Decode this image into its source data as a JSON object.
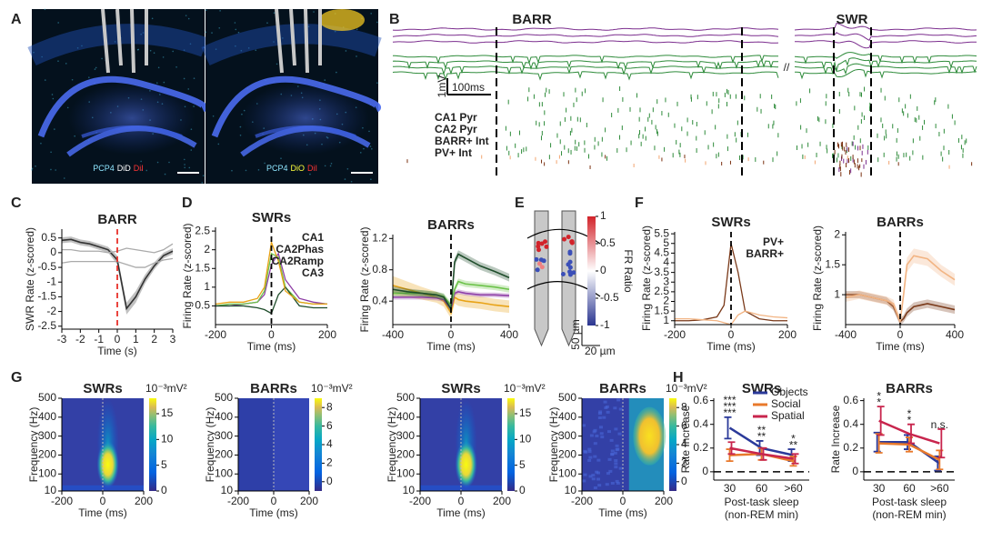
{
  "figure": {
    "panels": [
      "A",
      "B",
      "C",
      "D",
      "E",
      "F",
      "G",
      "H"
    ]
  },
  "illustrations": {
    "A": {
      "images": [
        {
          "label": [
            {
              "text": "PCP4",
              "color": "#8fe6ff"
            },
            {
              "text": "DiD",
              "color": "#ffffff"
            },
            {
              "text": "DiI",
              "color": "#ff3434"
            }
          ]
        },
        {
          "label": [
            {
              "text": "PCP4",
              "color": "#8fe6ff"
            },
            {
              "text": "DiO",
              "color": "#ffff3c"
            },
            {
              "text": "DiI",
              "color": "#ff3434"
            }
          ]
        }
      ]
    },
    "B": {
      "events": [
        "BARR",
        "SWR"
      ],
      "scale": [
        "1mV",
        "100ms"
      ],
      "legend": [
        {
          "name": "CA1 Pyr",
          "color": "#7b2d8e"
        },
        {
          "name": "CA2 Pyr",
          "color": "#2e8b3a"
        },
        {
          "name": "BARR+ Int",
          "color": "#f2a46f"
        },
        {
          "name": "PV+ Int",
          "color": "#7a3010"
        }
      ]
    },
    "E": {
      "colorbar_label": "FR Ratio",
      "clim": [
        -1,
        1
      ],
      "cticks": [
        1,
        0.5,
        0,
        -0.5,
        -1
      ],
      "scale": [
        "50 µm",
        "20 µm"
      ]
    }
  },
  "chart_data": [
    {
      "type": "line",
      "title": "BARR",
      "xlabel": "Time (s)",
      "ylabel": "SWR Rate (z-scored)",
      "xlim": [
        -3,
        3
      ],
      "ylim": [
        -2.6,
        0.8
      ],
      "xticks": [
        -3,
        -2,
        -1,
        0,
        1,
        2,
        3
      ],
      "yticks": [
        -2.5,
        -2,
        -1.5,
        -1,
        -0.5,
        0,
        0.5
      ],
      "vline": 0,
      "vline_color": "#e8302a",
      "x": [
        -3,
        -2.5,
        -2,
        -1.5,
        -1,
        -0.5,
        0,
        0.5,
        1,
        1.5,
        2,
        2.5,
        3
      ],
      "series": [
        {
          "color": "#333333",
          "values": [
            0.42,
            0.45,
            0.35,
            0.3,
            0.2,
            0.1,
            -0.25,
            -1.9,
            -1.5,
            -0.9,
            -0.45,
            -0.1,
            0.05
          ],
          "errors": [
            0.1,
            0.1,
            0.1,
            0.1,
            0.1,
            0.1,
            0.15,
            0.2,
            0.2,
            0.15,
            0.12,
            0.1,
            0.1
          ]
        },
        {
          "color": "#aaaaaa",
          "values": [
            0.1,
            0.1,
            0.05,
            0.05,
            0.05,
            0.0,
            0.05,
            0.15,
            0.1,
            0.05,
            0.0,
            0.1,
            0.3
          ]
        },
        {
          "color": "#aaaaaa",
          "values": [
            -0.35,
            -0.3,
            -0.3,
            -0.3,
            -0.3,
            -0.3,
            -0.3,
            -0.4,
            -0.5,
            -0.5,
            -0.35,
            -0.25,
            -0.2
          ]
        }
      ]
    },
    {
      "type": "line",
      "title": "SWRs",
      "xlabel": "Time (ms)",
      "ylabel": "Firing Rate (z-scored)",
      "xlim": [
        -200,
        200
      ],
      "ylim": [
        0,
        2.6
      ],
      "xticks": [
        -200,
        0,
        200
      ],
      "yticks": [
        0.5,
        1,
        1.5,
        2,
        2.5
      ],
      "vline": 0,
      "vline_color": "#000000",
      "legend": "upper right",
      "x": [
        -200,
        -150,
        -100,
        -50,
        -25,
        0,
        25,
        50,
        100,
        150,
        200
      ],
      "series": [
        {
          "name": "CA1",
          "color": "#8e3fa6",
          "values": [
            0.5,
            0.5,
            0.55,
            0.6,
            0.8,
            1.6,
            1.9,
            1.2,
            0.7,
            0.6,
            0.55
          ]
        },
        {
          "name": "CA2Phas",
          "color": "#6cc24a",
          "values": [
            0.5,
            0.55,
            0.55,
            0.6,
            0.9,
            1.9,
            1.8,
            1.0,
            0.6,
            0.55,
            0.55
          ]
        },
        {
          "name": "CA2Ramp",
          "color": "#1f4d2b",
          "values": [
            0.5,
            0.5,
            0.5,
            0.45,
            0.4,
            0.3,
            0.8,
            1.0,
            0.5,
            0.45,
            0.45
          ]
        },
        {
          "name": "CA3",
          "color": "#e8a317",
          "values": [
            0.55,
            0.6,
            0.6,
            0.7,
            1.0,
            2.2,
            1.7,
            0.9,
            0.6,
            0.55,
            0.55
          ]
        }
      ]
    },
    {
      "type": "line",
      "title": "BARRs",
      "xlabel": "Time (ms)",
      "ylabel": "Firing Rate (z-scored)",
      "xlim": [
        -400,
        400
      ],
      "ylim": [
        0.1,
        1.25
      ],
      "xticks": [
        -400,
        0,
        400
      ],
      "yticks": [
        0.4,
        0.8,
        1.2
      ],
      "vline": 0,
      "vline_color": "#000000",
      "x": [
        -400,
        -300,
        -200,
        -100,
        -50,
        0,
        25,
        50,
        100,
        200,
        300,
        400
      ],
      "series": [
        {
          "color": "#e8a317",
          "values": [
            0.6,
            0.55,
            0.5,
            0.45,
            0.4,
            0.25,
            0.45,
            0.42,
            0.4,
            0.38,
            0.35,
            0.33
          ],
          "errors": [
            0.12,
            0.1,
            0.08,
            0.07,
            0.07,
            0.07,
            0.08,
            0.08,
            0.08,
            0.08,
            0.08,
            0.08
          ]
        },
        {
          "color": "#8e3fa6",
          "values": [
            0.45,
            0.45,
            0.45,
            0.44,
            0.42,
            0.3,
            0.5,
            0.52,
            0.5,
            0.48,
            0.48,
            0.47
          ],
          "errors": [
            0.03,
            0.03,
            0.03,
            0.03,
            0.03,
            0.03,
            0.03,
            0.03,
            0.03,
            0.03,
            0.03,
            0.03
          ]
        },
        {
          "color": "#6cc24a",
          "values": [
            0.5,
            0.5,
            0.5,
            0.48,
            0.46,
            0.35,
            0.55,
            0.65,
            0.62,
            0.6,
            0.58,
            0.55
          ],
          "errors": [
            0.04,
            0.04,
            0.04,
            0.04,
            0.04,
            0.04,
            0.04,
            0.04,
            0.04,
            0.04,
            0.04,
            0.04
          ]
        },
        {
          "color": "#1f4d2b",
          "values": [
            0.55,
            0.52,
            0.5,
            0.48,
            0.45,
            0.3,
            0.9,
            1.0,
            0.95,
            0.85,
            0.78,
            0.7
          ],
          "errors": [
            0.04,
            0.04,
            0.04,
            0.04,
            0.04,
            0.04,
            0.05,
            0.05,
            0.05,
            0.05,
            0.05,
            0.05
          ]
        }
      ]
    },
    {
      "type": "line",
      "title": "SWRs",
      "xlabel": "Time (ms)",
      "ylabel": "Firing Rate (z-scored)",
      "xlim": [
        -200,
        200
      ],
      "ylim": [
        0.8,
        5.6
      ],
      "xticks": [
        -200,
        0,
        200
      ],
      "yticks": [
        1,
        1.5,
        2,
        2.5,
        3,
        3.5,
        4,
        4.5,
        5,
        5.5
      ],
      "vline": 0,
      "vline_color": "#000000",
      "legend": "upper right",
      "x": [
        -200,
        -150,
        -100,
        -50,
        -25,
        0,
        25,
        50,
        100,
        150,
        200
      ],
      "series": [
        {
          "name": "PV+",
          "color": "#7a3a1a",
          "values": [
            1,
            1,
            1.05,
            1.2,
            1.8,
            5.0,
            3.5,
            1.5,
            1.1,
            1,
            1
          ]
        },
        {
          "name": "BARR+",
          "color": "#f2b483",
          "values": [
            1.1,
            1.1,
            1.05,
            1,
            0.9,
            0.8,
            1.3,
            1.5,
            1.3,
            1.2,
            1.15
          ]
        }
      ]
    },
    {
      "type": "line",
      "title": "BARRs",
      "xlabel": "Time (ms)",
      "ylabel": "Firing Rate (z-scored)",
      "xlim": [
        -400,
        400
      ],
      "ylim": [
        0.5,
        2.05
      ],
      "xticks": [
        -400,
        0,
        400
      ],
      "yticks": [
        1,
        1.5,
        2
      ],
      "vline": 0,
      "vline_color": "#000000",
      "x": [
        -400,
        -300,
        -200,
        -100,
        -50,
        0,
        25,
        50,
        100,
        200,
        300,
        400
      ],
      "series": [
        {
          "color": "#7a3a1a",
          "values": [
            1,
            1,
            0.95,
            0.9,
            0.8,
            0.55,
            0.6,
            0.7,
            0.8,
            0.85,
            0.8,
            0.75
          ],
          "errors": [
            0.06,
            0.06,
            0.06,
            0.06,
            0.06,
            0.06,
            0.06,
            0.07,
            0.07,
            0.07,
            0.07,
            0.07
          ]
        },
        {
          "color": "#f2b483",
          "values": [
            0.95,
            1,
            0.95,
            0.9,
            0.85,
            0.55,
            1.0,
            1.5,
            1.65,
            1.6,
            1.4,
            1.25
          ],
          "errors": [
            0.07,
            0.07,
            0.07,
            0.07,
            0.07,
            0.07,
            0.1,
            0.12,
            0.12,
            0.12,
            0.1,
            0.1
          ]
        }
      ]
    },
    {
      "type": "heatmap",
      "title": "SWRs",
      "xlabel": "Time (ms)",
      "ylabel": "Frequency (Hz)",
      "xlim": [
        -200,
        200
      ],
      "ylim": [
        10,
        500
      ],
      "xticks": [
        -200,
        0,
        200
      ],
      "yticks": [
        10,
        100,
        200,
        300,
        400,
        500
      ],
      "colorbar_label": "10⁻³mV²",
      "clim": [
        0,
        18
      ],
      "cticks": [
        0,
        5,
        10,
        15
      ]
    },
    {
      "type": "heatmap",
      "title": "BARRs",
      "xlabel": "Time (ms)",
      "ylabel": "Frequency (Hz)",
      "xlim": [
        -200,
        200
      ],
      "ylim": [
        10,
        500
      ],
      "xticks": [
        -200,
        0,
        200
      ],
      "yticks": [
        10,
        100,
        200,
        300,
        400,
        500
      ],
      "colorbar_label": "10⁻³mV²",
      "clim": [
        -1,
        9
      ],
      "cticks": [
        0,
        2,
        4,
        6,
        8
      ]
    },
    {
      "type": "heatmap",
      "title": "SWRs",
      "xlabel": "Time (ms)",
      "ylabel": "Frequency (Hz)",
      "xlim": [
        -200,
        200
      ],
      "ylim": [
        10,
        500
      ],
      "xticks": [
        -200,
        0,
        200
      ],
      "yticks": [
        10,
        100,
        200,
        300,
        400,
        500
      ],
      "colorbar_label": "10⁻³mV²",
      "clim": [
        0,
        18
      ],
      "cticks": [
        0,
        5,
        10,
        15
      ]
    },
    {
      "type": "heatmap",
      "title": "BARRs",
      "xlabel": "Time (ms)",
      "ylabel": "Frequency (Hz)",
      "xlim": [
        -200,
        200
      ],
      "ylim": [
        10,
        500
      ],
      "xticks": [
        -200,
        0,
        200
      ],
      "yticks": [
        10,
        100,
        200,
        300,
        400,
        500
      ],
      "colorbar_label": "10⁻³mV²",
      "clim": [
        -1,
        9
      ],
      "cticks": [
        0,
        2,
        4,
        6,
        8
      ]
    },
    {
      "type": "errorbar",
      "title": "SWRs",
      "xlabel": [
        "Post-task sleep",
        "(non-REM min)"
      ],
      "ylabel": "Rate Increase",
      "categories": [
        "30",
        "60",
        ">60"
      ],
      "ylim": [
        -0.07,
        0.62
      ],
      "yticks": [
        0,
        0.2,
        0.4,
        0.6
      ],
      "hline": 0,
      "legend": "upper right",
      "series": [
        {
          "name": "Objects",
          "color": "#2b3a9a",
          "values": [
            0.37,
            0.2,
            0.14
          ],
          "errors": [
            0.09,
            0.06,
            0.05
          ]
        },
        {
          "name": "Social",
          "color": "#e8792b",
          "values": [
            0.14,
            0.15,
            0.09
          ],
          "errors": [
            0.05,
            0.05,
            0.04
          ]
        },
        {
          "name": "Spatial",
          "color": "#c8254d",
          "values": [
            0.2,
            0.15,
            0.11
          ],
          "errors": [
            0.05,
            0.05,
            0.04
          ]
        }
      ],
      "annotations": [
        {
          "at": "30",
          "text": "***",
          "color": "#2b3a9a"
        },
        {
          "at": "30",
          "text": "***",
          "color": "#c8254d"
        },
        {
          "at": "30",
          "text": "***",
          "color": "#c8254d"
        },
        {
          "at": "60",
          "text": "**",
          "color": "#2b3a9a"
        },
        {
          "at": "60",
          "text": "**",
          "color": "#c8254d"
        },
        {
          "at": ">60",
          "text": "**",
          "color": "#2b3a9a"
        },
        {
          "at": ">60",
          "text": "*",
          "color": "#c8254d"
        }
      ]
    },
    {
      "type": "errorbar",
      "title": "BARRs",
      "xlabel": [
        "Post-task sleep",
        "(non-REM min)"
      ],
      "ylabel": "Rate Increase",
      "categories": [
        "30",
        "60",
        ">60"
      ],
      "ylim": [
        -0.07,
        0.62
      ],
      "yticks": [
        0,
        0.2,
        0.4,
        0.6
      ],
      "hline": 0,
      "series": [
        {
          "color": "#2b3a9a",
          "values": [
            0.25,
            0.25,
            0.07
          ],
          "errors": [
            0.08,
            0.06,
            0.06
          ]
        },
        {
          "color": "#e8792b",
          "values": [
            0.24,
            0.23,
            0.1
          ],
          "errors": [
            0.08,
            0.06,
            0.08
          ]
        },
        {
          "color": "#c8254d",
          "values": [
            0.43,
            0.32,
            0.24
          ],
          "errors": [
            0.12,
            0.08,
            0.12
          ]
        }
      ],
      "annotations": [
        {
          "at": "30",
          "text": "*",
          "color": "#c8254d"
        },
        {
          "at": "30",
          "text": "*",
          "color": "#c8254d"
        },
        {
          "at": "60",
          "text": "*",
          "color": "#c8254d"
        },
        {
          "at": "60",
          "text": "*",
          "color": "#c8254d"
        },
        {
          "at": ">60",
          "text": "n.s.",
          "color": "#222222"
        }
      ]
    }
  ]
}
